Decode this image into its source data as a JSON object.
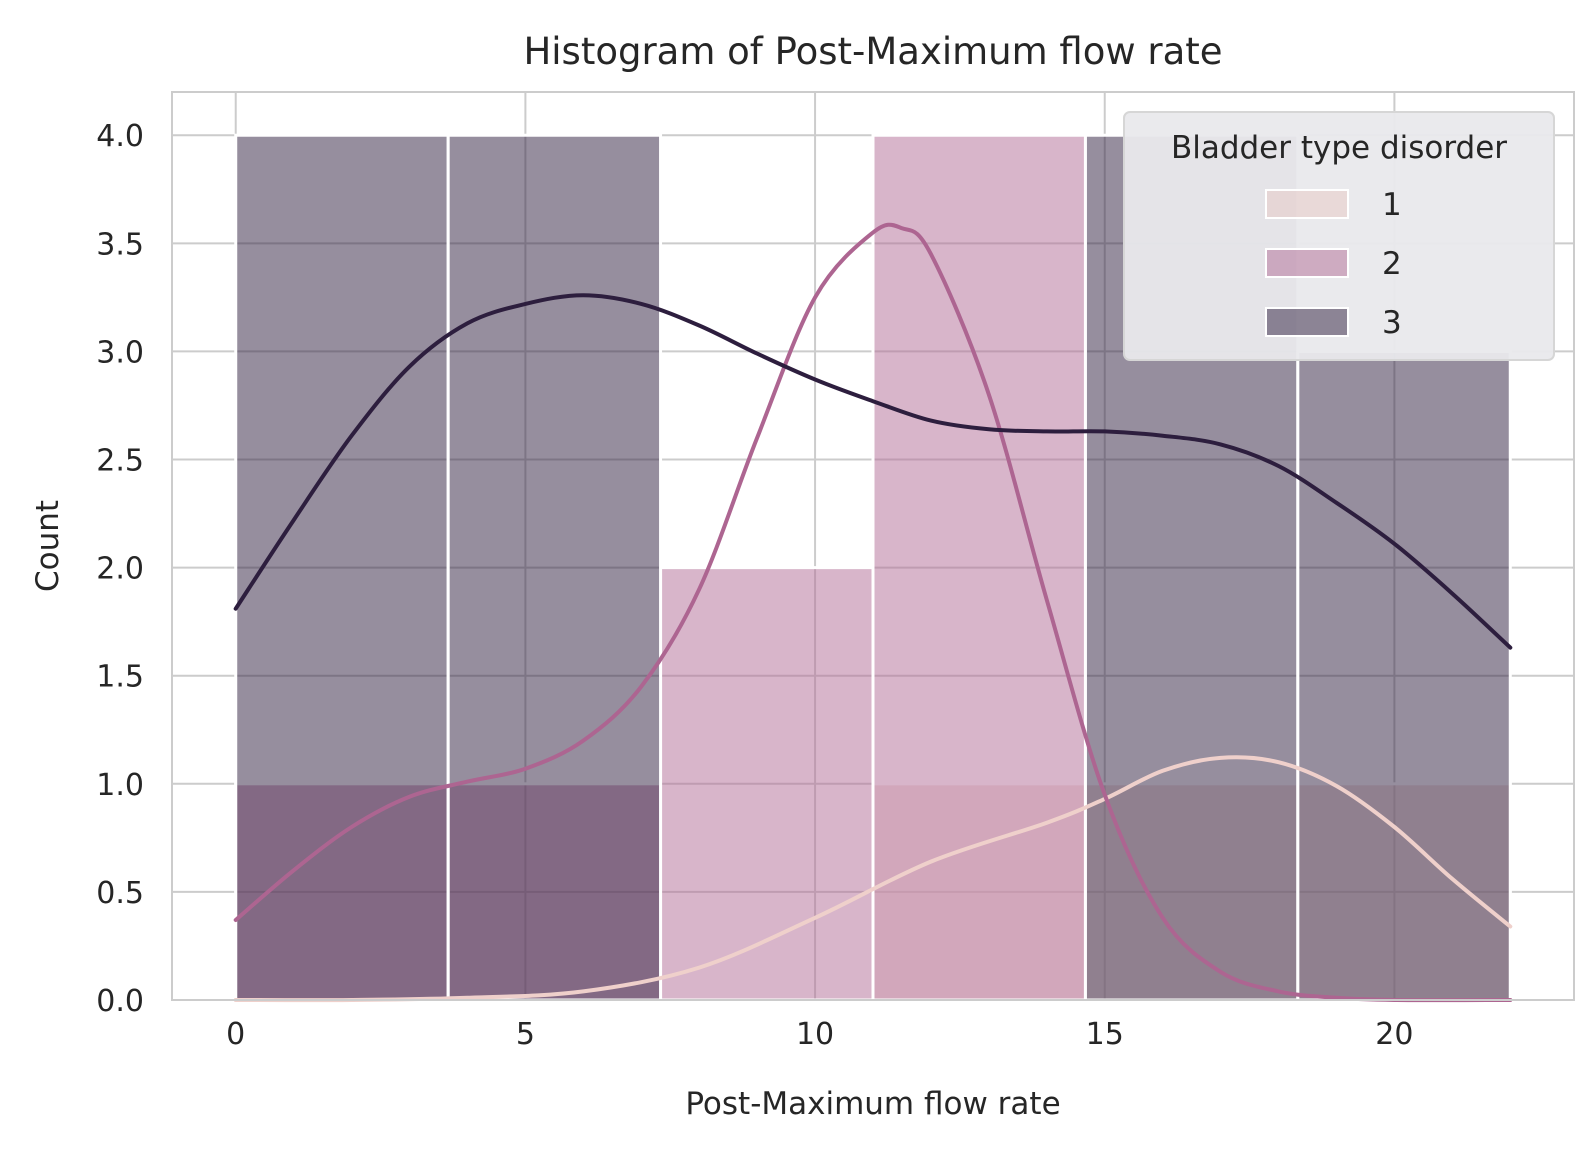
{
  "chart_data": {
    "type": "bar",
    "title": "Histogram of Post-Maximum flow rate",
    "xlabel": "Post-Maximum flow rate",
    "ylabel": "Count",
    "xlim": [
      -1.1,
      23.1
    ],
    "ylim": [
      0,
      4.2
    ],
    "xticks": [
      0,
      5,
      10,
      15,
      20
    ],
    "yticks": [
      "0.0",
      "0.5",
      "1.0",
      "1.5",
      "2.0",
      "2.5",
      "3.0",
      "3.5",
      "4.0"
    ],
    "bin_edges": [
      0,
      3.667,
      7.333,
      11.0,
      14.667,
      18.333,
      22.0
    ],
    "grid": true,
    "legend": {
      "title": "Bladder type disorder",
      "placement": "top-right"
    },
    "series": [
      {
        "name": "1",
        "color": "#e8c8c4",
        "line_color": "#efd0cb",
        "counts": [
          0,
          0,
          0,
          1,
          1,
          1
        ],
        "kde": [
          [
            0,
            0.0
          ],
          [
            2,
            0.0
          ],
          [
            4,
            0.01
          ],
          [
            6,
            0.04
          ],
          [
            8,
            0.15
          ],
          [
            10,
            0.38
          ],
          [
            12,
            0.64
          ],
          [
            14,
            0.82
          ],
          [
            15,
            0.93
          ],
          [
            16,
            1.06
          ],
          [
            17,
            1.12
          ],
          [
            18,
            1.1
          ],
          [
            19,
            0.99
          ],
          [
            20,
            0.8
          ],
          [
            21,
            0.56
          ],
          [
            22,
            0.34
          ]
        ]
      },
      {
        "name": "2",
        "color": "#b26b95",
        "line_color": "#ad6591",
        "counts": [
          1,
          1,
          2,
          4,
          0,
          0
        ],
        "kde": [
          [
            0,
            0.37
          ],
          [
            1,
            0.6
          ],
          [
            2,
            0.8
          ],
          [
            3,
            0.94
          ],
          [
            4,
            1.01
          ],
          [
            5,
            1.07
          ],
          [
            6,
            1.2
          ],
          [
            7,
            1.45
          ],
          [
            8,
            1.9
          ],
          [
            9,
            2.6
          ],
          [
            10,
            3.25
          ],
          [
            11,
            3.55
          ],
          [
            11.5,
            3.57
          ],
          [
            12,
            3.45
          ],
          [
            13,
            2.8
          ],
          [
            14,
            1.85
          ],
          [
            15,
            0.95
          ],
          [
            16,
            0.38
          ],
          [
            17,
            0.13
          ],
          [
            18,
            0.04
          ],
          [
            19,
            0.01
          ],
          [
            20,
            0.0
          ],
          [
            22,
            0.0
          ]
        ]
      },
      {
        "name": "3",
        "color": "#2d1e3e",
        "line_color": "#2d1e3e",
        "counts": [
          4,
          4,
          0,
          0,
          4,
          3
        ],
        "kde": [
          [
            0,
            1.81
          ],
          [
            1,
            2.22
          ],
          [
            2,
            2.61
          ],
          [
            3,
            2.93
          ],
          [
            4,
            3.13
          ],
          [
            5,
            3.22
          ],
          [
            6,
            3.26
          ],
          [
            7,
            3.22
          ],
          [
            8,
            3.12
          ],
          [
            9,
            2.99
          ],
          [
            10,
            2.87
          ],
          [
            11,
            2.77
          ],
          [
            12,
            2.68
          ],
          [
            13,
            2.64
          ],
          [
            14,
            2.63
          ],
          [
            15,
            2.63
          ],
          [
            16,
            2.61
          ],
          [
            17,
            2.57
          ],
          [
            18,
            2.47
          ],
          [
            19,
            2.3
          ],
          [
            20,
            2.11
          ],
          [
            21,
            1.88
          ],
          [
            22,
            1.63
          ]
        ]
      }
    ]
  }
}
